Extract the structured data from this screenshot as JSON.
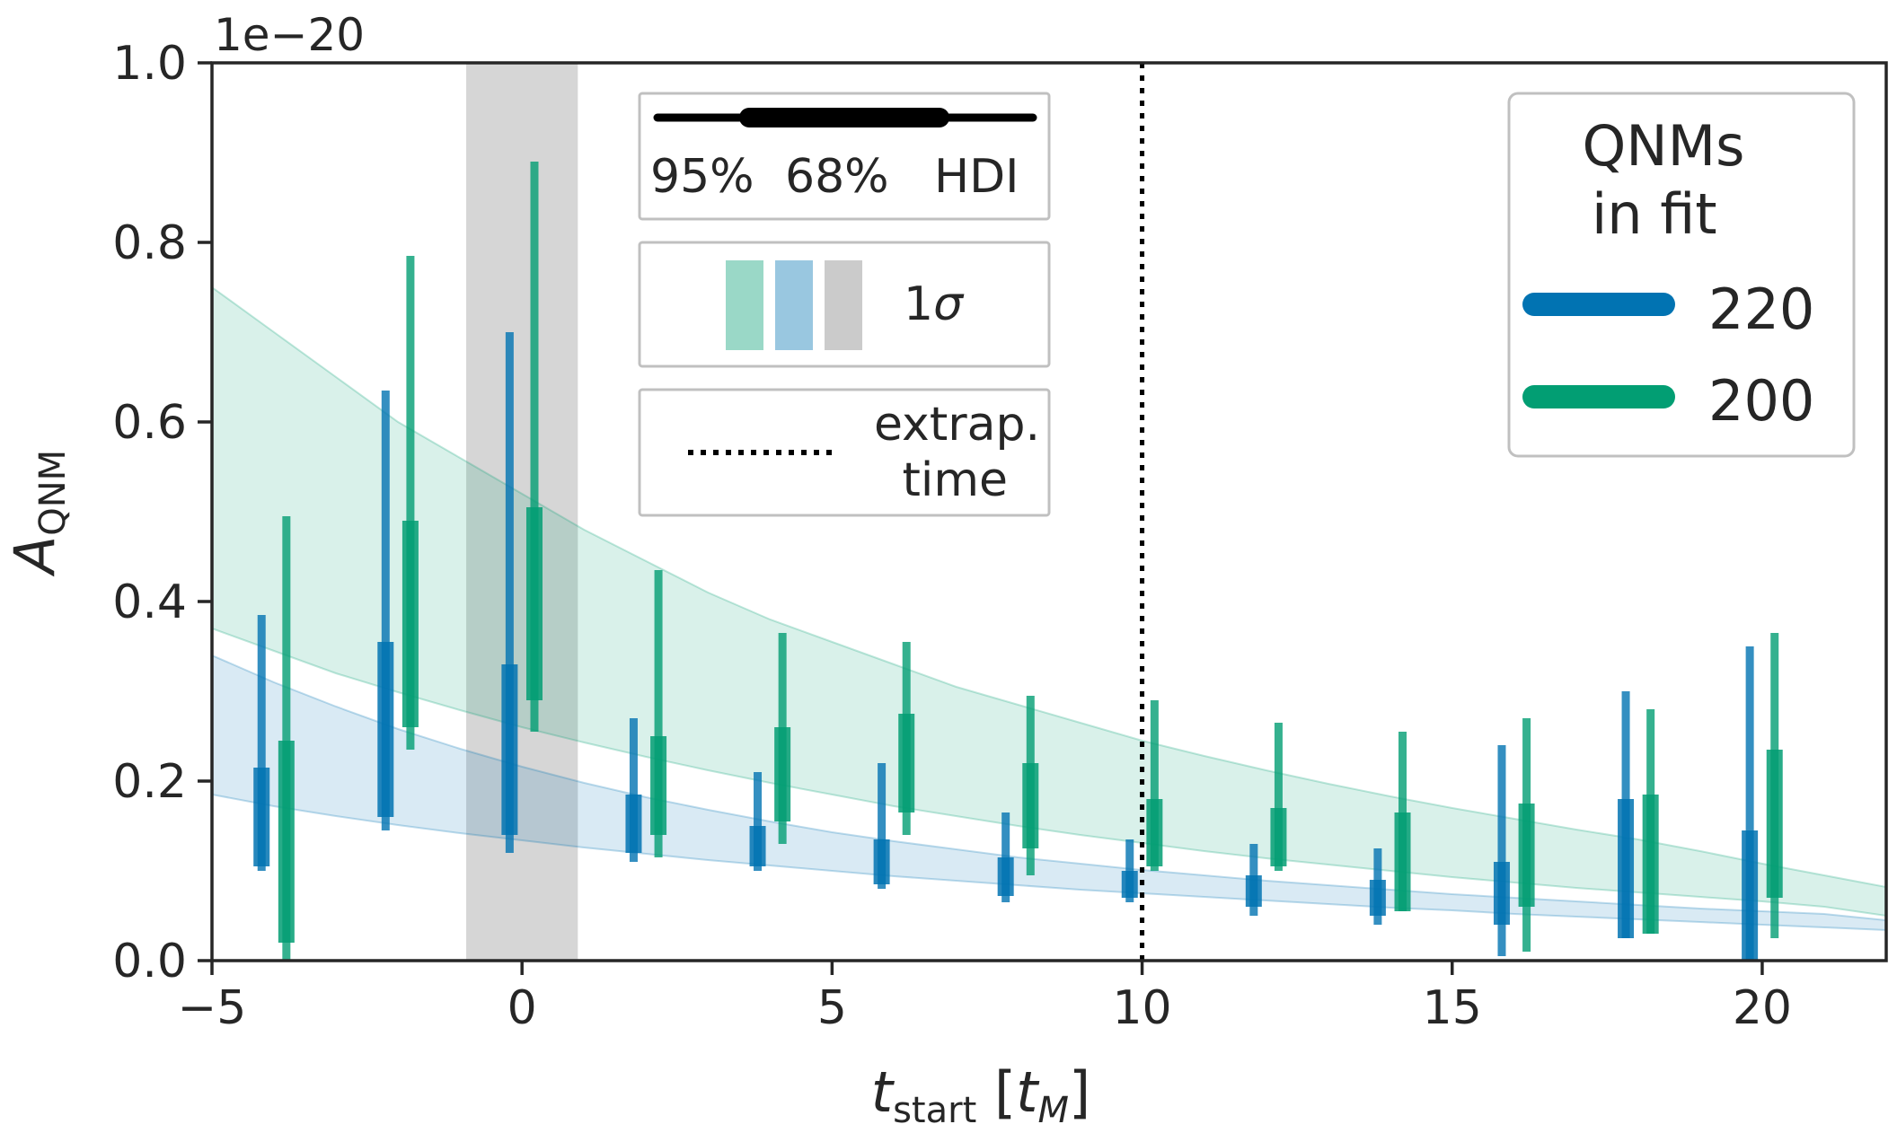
{
  "chart_data": {
    "type": "scatter",
    "title": "",
    "offset_text": "1e−20",
    "xlabel": {
      "main": "t",
      "sub": "start",
      "bracket_open": " [",
      "unit_main": "t",
      "unit_sub": "M",
      "bracket_close": "]"
    },
    "ylabel": {
      "main": "A",
      "sub": "QNM"
    },
    "xlim": [
      -5,
      22
    ],
    "ylim": [
      0.0,
      1.0
    ],
    "x_ticks": [
      {
        "value": -5,
        "label": "−5"
      },
      {
        "value": 0,
        "label": "0"
      },
      {
        "value": 5,
        "label": "5"
      },
      {
        "value": 10,
        "label": "10"
      },
      {
        "value": 15,
        "label": "15"
      },
      {
        "value": 20,
        "label": "20"
      }
    ],
    "y_ticks": [
      {
        "value": 0.0,
        "label": "0.0"
      },
      {
        "value": 0.2,
        "label": "0.2"
      },
      {
        "value": 0.4,
        "label": "0.4"
      },
      {
        "value": 0.6,
        "label": "0.6"
      },
      {
        "value": 0.8,
        "label": "0.8"
      },
      {
        "value": 1.0,
        "label": "1.0"
      }
    ],
    "grid": false,
    "shaded_region": {
      "x": [
        -0.9,
        0.9
      ],
      "color": "#d6d6d6"
    },
    "extrapolation_time": 10,
    "series": [
      {
        "name": "220",
        "color": "#0173b2",
        "x_offset": -0.2,
        "points": [
          {
            "x": -4,
            "lo95": 0.1,
            "hi95": 0.385,
            "lo68": 0.105,
            "hi68": 0.215
          },
          {
            "x": -2,
            "lo95": 0.145,
            "hi95": 0.635,
            "lo68": 0.16,
            "hi68": 0.355
          },
          {
            "x": 0,
            "lo95": 0.12,
            "hi95": 0.7,
            "lo68": 0.14,
            "hi68": 0.33
          },
          {
            "x": 2,
            "lo95": 0.11,
            "hi95": 0.27,
            "lo68": 0.12,
            "hi68": 0.185
          },
          {
            "x": 4,
            "lo95": 0.1,
            "hi95": 0.21,
            "lo68": 0.105,
            "hi68": 0.15
          },
          {
            "x": 6,
            "lo95": 0.08,
            "hi95": 0.22,
            "lo68": 0.085,
            "hi68": 0.135
          },
          {
            "x": 8,
            "lo95": 0.065,
            "hi95": 0.165,
            "lo68": 0.072,
            "hi68": 0.115
          },
          {
            "x": 10,
            "lo95": 0.065,
            "hi95": 0.135,
            "lo68": 0.07,
            "hi68": 0.1
          },
          {
            "x": 12,
            "lo95": 0.05,
            "hi95": 0.13,
            "lo68": 0.06,
            "hi68": 0.095
          },
          {
            "x": 14,
            "lo95": 0.04,
            "hi95": 0.125,
            "lo68": 0.05,
            "hi68": 0.09
          },
          {
            "x": 16,
            "lo95": 0.005,
            "hi95": 0.24,
            "lo68": 0.04,
            "hi68": 0.11
          },
          {
            "x": 18,
            "lo95": 0.025,
            "hi95": 0.3,
            "lo68": 0.025,
            "hi68": 0.18
          },
          {
            "x": 20,
            "lo95": 0.0,
            "hi95": 0.35,
            "lo68": 0.0,
            "hi68": 0.145
          }
        ]
      },
      {
        "name": "200",
        "color": "#029e73",
        "x_offset": 0.2,
        "points": [
          {
            "x": -4,
            "lo95": 0.0,
            "hi95": 0.495,
            "lo68": 0.02,
            "hi68": 0.245
          },
          {
            "x": -2,
            "lo95": 0.235,
            "hi95": 0.785,
            "lo68": 0.26,
            "hi68": 0.49
          },
          {
            "x": 0,
            "lo95": 0.255,
            "hi95": 0.89,
            "lo68": 0.29,
            "hi68": 0.505
          },
          {
            "x": 2,
            "lo95": 0.115,
            "hi95": 0.435,
            "lo68": 0.14,
            "hi68": 0.25
          },
          {
            "x": 4,
            "lo95": 0.13,
            "hi95": 0.365,
            "lo68": 0.155,
            "hi68": 0.26
          },
          {
            "x": 6,
            "lo95": 0.14,
            "hi95": 0.355,
            "lo68": 0.165,
            "hi68": 0.275
          },
          {
            "x": 8,
            "lo95": 0.095,
            "hi95": 0.295,
            "lo68": 0.125,
            "hi68": 0.22
          },
          {
            "x": 10,
            "lo95": 0.1,
            "hi95": 0.29,
            "lo68": 0.105,
            "hi68": 0.18
          },
          {
            "x": 12,
            "lo95": 0.1,
            "hi95": 0.265,
            "lo68": 0.105,
            "hi68": 0.17
          },
          {
            "x": 14,
            "lo95": 0.055,
            "hi95": 0.255,
            "lo68": 0.055,
            "hi68": 0.165
          },
          {
            "x": 16,
            "lo95": 0.01,
            "hi95": 0.27,
            "lo68": 0.06,
            "hi68": 0.175
          },
          {
            "x": 18,
            "lo95": 0.03,
            "hi95": 0.28,
            "lo68": 0.03,
            "hi68": 0.185
          },
          {
            "x": 20,
            "lo95": 0.025,
            "hi95": 0.365,
            "lo68": 0.07,
            "hi68": 0.235
          }
        ]
      }
    ],
    "bands": [
      {
        "series": "200",
        "color": "#029e73",
        "opacity": 0.15,
        "x": [
          -5,
          -4,
          -3,
          -2,
          -1,
          0,
          1,
          2,
          3,
          4,
          5,
          6,
          7,
          8,
          9,
          10,
          11,
          12,
          13,
          14,
          15,
          16,
          17,
          18,
          19,
          20,
          21,
          22
        ],
        "lower": [
          0.37,
          0.345,
          0.32,
          0.299,
          0.279,
          0.26,
          0.243,
          0.227,
          0.212,
          0.198,
          0.185,
          0.172,
          0.161,
          0.15,
          0.14,
          0.131,
          0.122,
          0.114,
          0.107,
          0.1,
          0.093,
          0.087,
          0.081,
          0.076,
          0.071,
          0.066,
          0.06,
          0.05
        ],
        "upper": [
          0.75,
          0.7,
          0.65,
          0.6,
          0.56,
          0.52,
          0.48,
          0.445,
          0.41,
          0.38,
          0.355,
          0.33,
          0.305,
          0.285,
          0.265,
          0.245,
          0.228,
          0.212,
          0.197,
          0.183,
          0.17,
          0.158,
          0.146,
          0.135,
          0.122,
          0.108,
          0.095,
          0.082
        ]
      },
      {
        "series": "220",
        "color": "#0173b2",
        "opacity": 0.15,
        "x": [
          -5,
          -4,
          -3,
          -2,
          -1,
          0,
          1,
          2,
          3,
          4,
          5,
          6,
          7,
          8,
          9,
          10,
          11,
          12,
          13,
          14,
          15,
          16,
          17,
          18,
          19,
          20,
          21,
          22
        ],
        "lower": [
          0.185,
          0.172,
          0.161,
          0.151,
          0.142,
          0.134,
          0.126,
          0.119,
          0.112,
          0.106,
          0.1,
          0.094,
          0.089,
          0.084,
          0.079,
          0.075,
          0.071,
          0.067,
          0.063,
          0.059,
          0.056,
          0.052,
          0.049,
          0.046,
          0.043,
          0.04,
          0.037,
          0.034
        ],
        "upper": [
          0.34,
          0.31,
          0.283,
          0.258,
          0.236,
          0.216,
          0.198,
          0.182,
          0.168,
          0.155,
          0.143,
          0.133,
          0.124,
          0.115,
          0.108,
          0.101,
          0.095,
          0.089,
          0.084,
          0.079,
          0.074,
          0.07,
          0.066,
          0.062,
          0.058,
          0.055,
          0.052,
          0.045
        ]
      }
    ],
    "legend_hdi": {
      "labels": [
        "95%",
        "68%",
        "HDI"
      ],
      "placement": "top-center"
    },
    "legend_sigma": {
      "label": "1",
      "symbol": "σ",
      "colors": [
        "#029e73",
        "#0173b2",
        "#a0a0a0"
      ]
    },
    "legend_extrap": {
      "line1": "extrap.",
      "line2": "time"
    },
    "legend_qnm": {
      "title_line1": "QNMs",
      "title_line2": "in fit",
      "placement": "top-right",
      "entries": [
        "220",
        "200"
      ]
    }
  }
}
